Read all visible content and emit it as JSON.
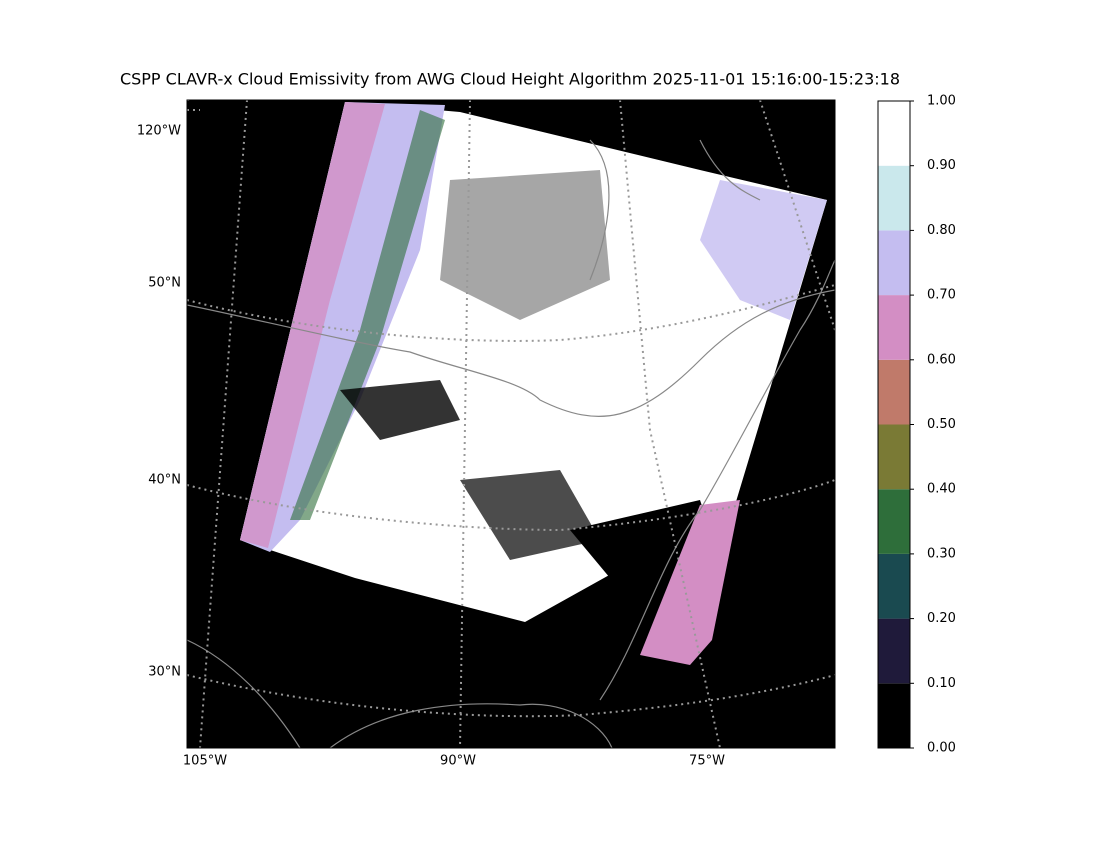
{
  "title": "CSPP CLAVR-x Cloud Emissivity from AWG Cloud Height Algorithm 2025-11-01 15:16:00-15:23:18",
  "map": {
    "lat_labels": [
      "120°W",
      "50°N",
      "40°N",
      "30°N"
    ],
    "lon_labels": [
      "105°W",
      "90°W",
      "75°W"
    ]
  },
  "colorbar": {
    "ticks": [
      {
        "value": 0,
        "label": "0.00"
      },
      {
        "value": 0.1,
        "label": "0.10"
      },
      {
        "value": 0.2,
        "label": "0.20"
      },
      {
        "value": 0.3,
        "label": "0.30"
      },
      {
        "value": 0.4,
        "label": "0.40"
      },
      {
        "value": 0.5,
        "label": "0.50"
      },
      {
        "value": 0.6,
        "label": "0.60"
      },
      {
        "value": 0.7,
        "label": "0.70"
      },
      {
        "value": 0.8,
        "label": "0.80"
      },
      {
        "value": 0.9,
        "label": "0.90"
      },
      {
        "value": 1,
        "label": "1.00"
      }
    ],
    "colors": [
      "#000000",
      "#1f1a3a",
      "#1a4a50",
      "#2e6e3a",
      "#7a7a35",
      "#c07a6a",
      "#d38ec4",
      "#c4bdf0",
      "#cae8ec",
      "#ffffff"
    ]
  }
}
